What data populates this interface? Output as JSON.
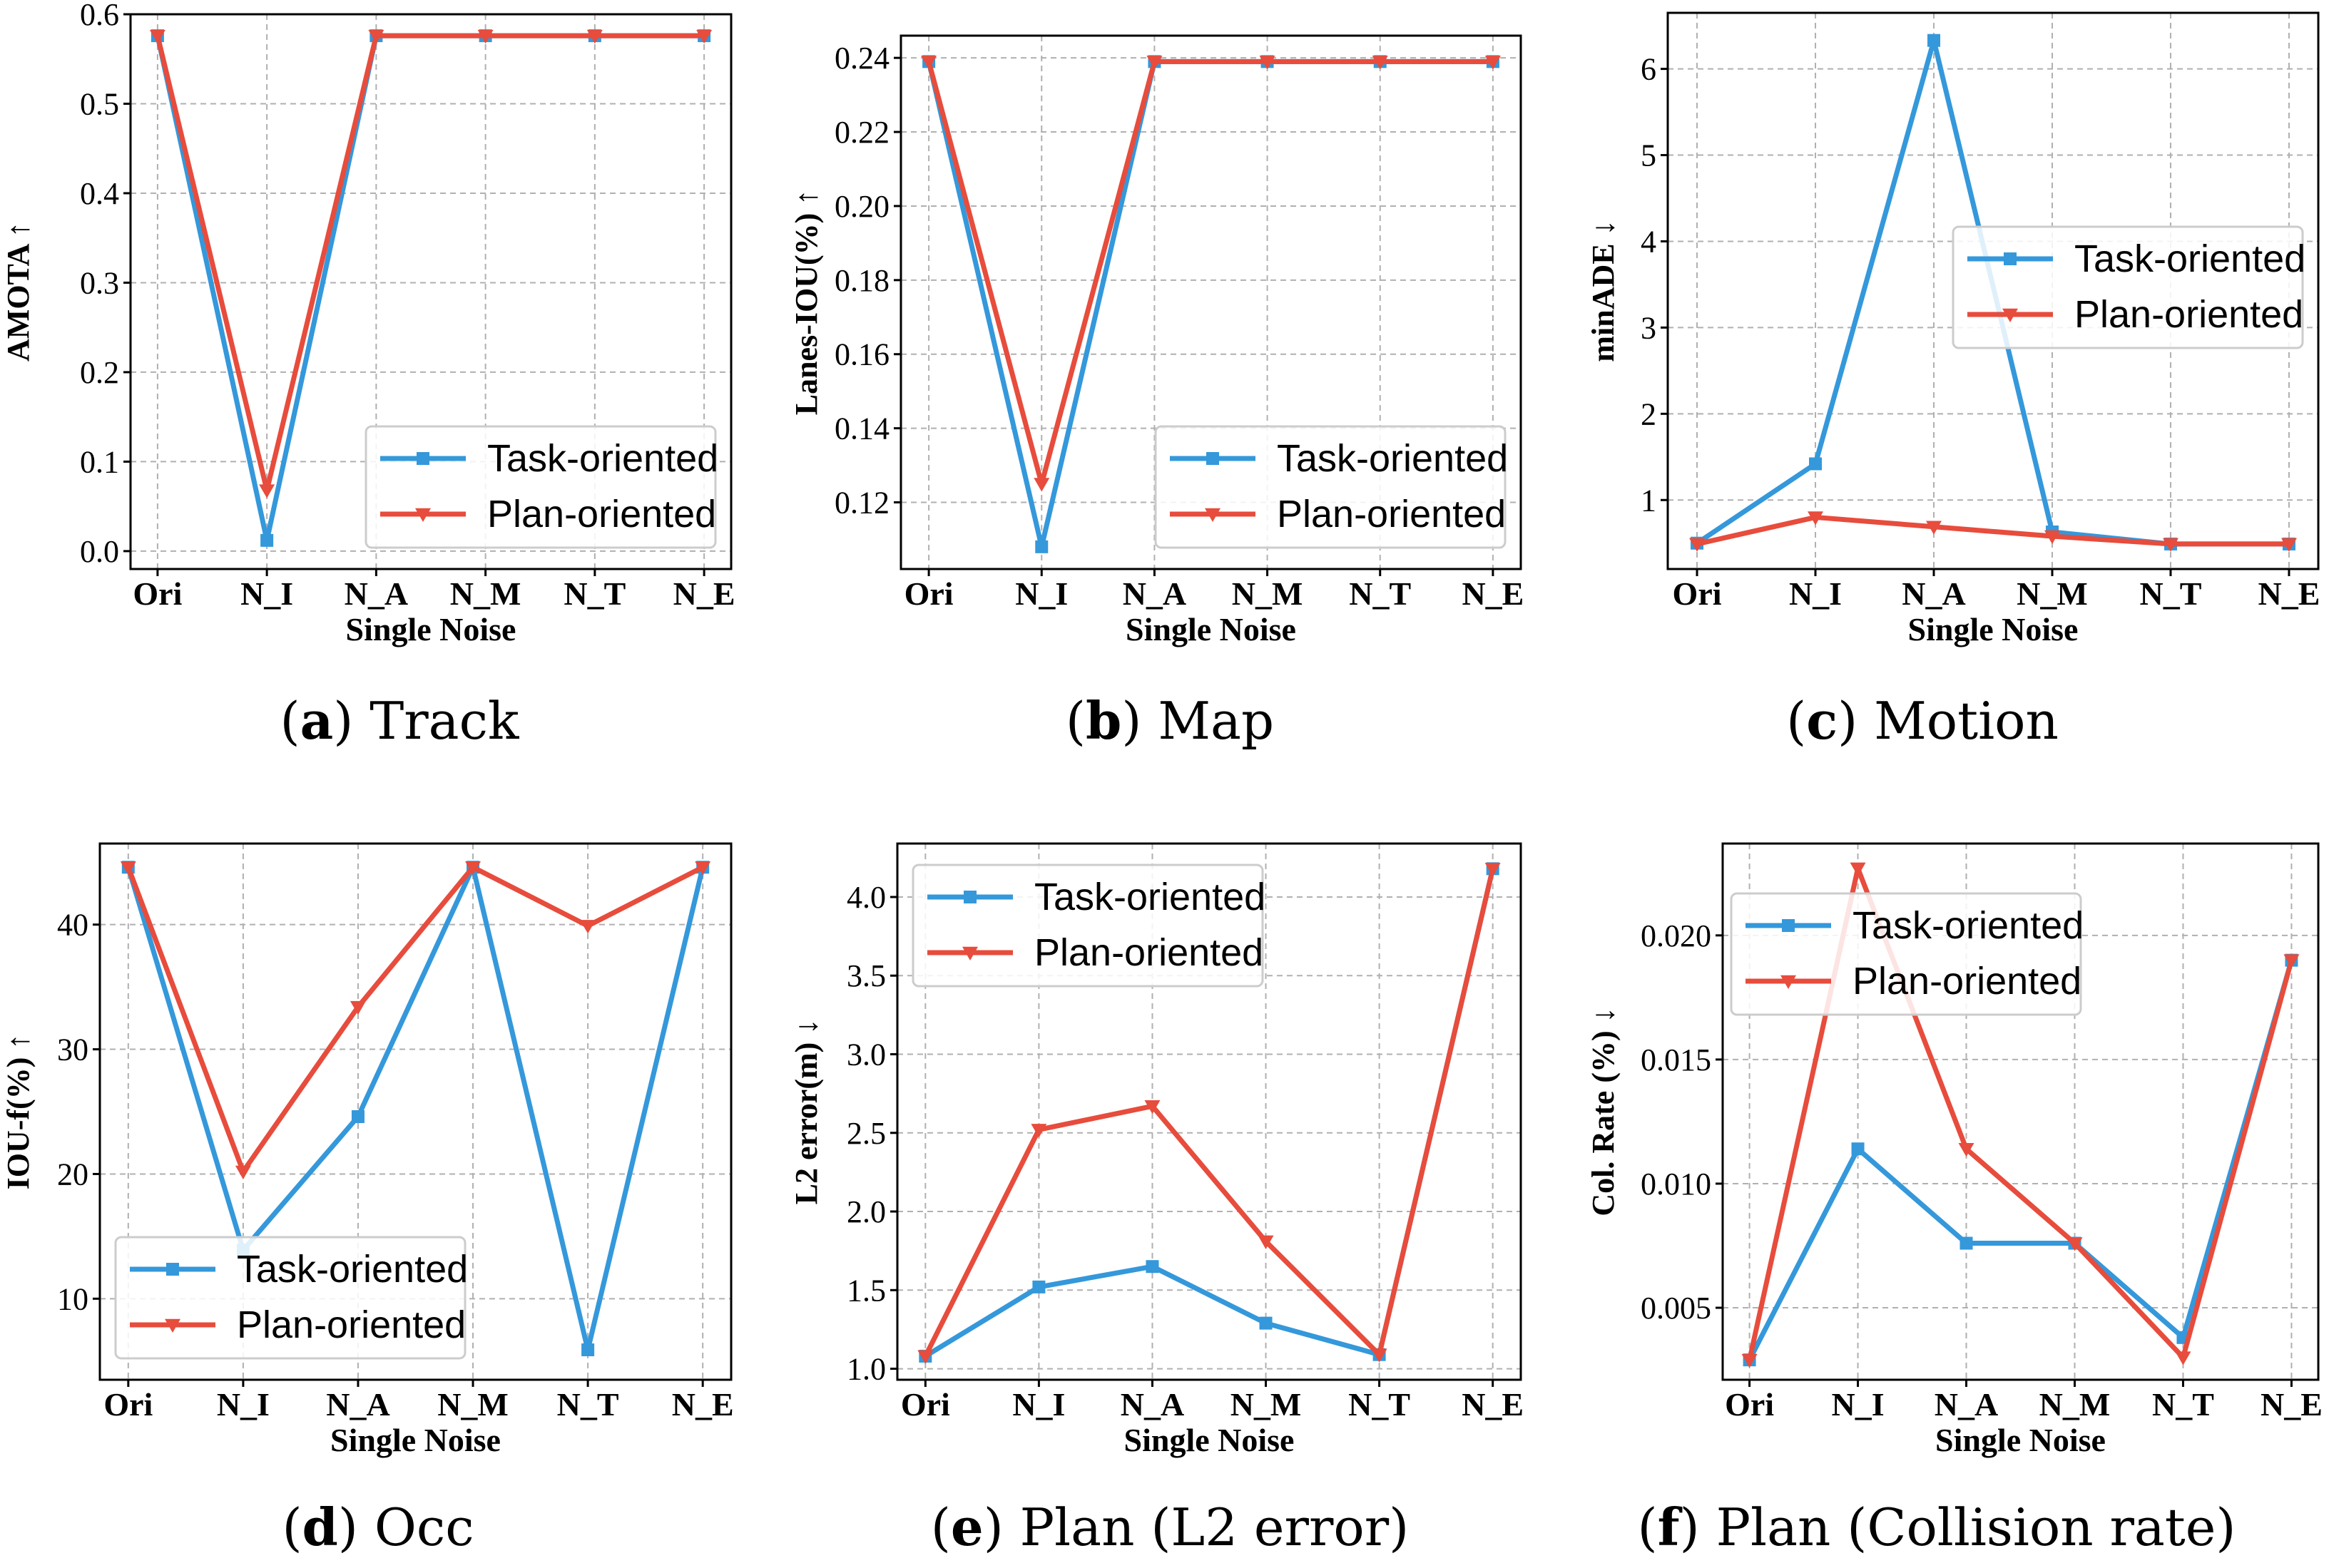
{
  "colors": {
    "task": "#3498db",
    "plan": "#e74c3c"
  },
  "series_names": [
    "Task-oriented",
    "Plan-oriented"
  ],
  "chart_data": [
    {
      "id": "a",
      "type": "line",
      "caption_letter": "a",
      "caption_text": "Track",
      "categories": [
        "Ori",
        "N_I",
        "N_A",
        "N_M",
        "N_T",
        "N_E"
      ],
      "xlabel": "Single Noise",
      "ylabel": "AMOTA ↑",
      "ylim": [
        -0.02,
        0.6
      ],
      "yticks": [
        0.0,
        0.1,
        0.2,
        0.3,
        0.4,
        0.5,
        0.6
      ],
      "ytick_labels": [
        "0.0",
        "0.1",
        "0.2",
        "0.3",
        "0.4",
        "0.5",
        "0.6"
      ],
      "legend_loc": "lower-right",
      "series": [
        {
          "name": "Task-oriented",
          "values": [
            0.576,
            0.012,
            0.576,
            0.576,
            0.576,
            0.576
          ]
        },
        {
          "name": "Plan-oriented",
          "values": [
            0.576,
            0.068,
            0.576,
            0.576,
            0.576,
            0.576
          ]
        }
      ]
    },
    {
      "id": "b",
      "type": "line",
      "caption_letter": "b",
      "caption_text": "Map",
      "categories": [
        "Ori",
        "N_I",
        "N_A",
        "N_M",
        "N_T",
        "N_E"
      ],
      "xlabel": "Single Noise",
      "ylabel": "Lanes-IOU(%) ↑",
      "ylim": [
        0.102,
        0.246
      ],
      "yticks": [
        0.12,
        0.14,
        0.16,
        0.18,
        0.2,
        0.22,
        0.24
      ],
      "ytick_labels": [
        "0.12",
        "0.14",
        "0.16",
        "0.18",
        "0.20",
        "0.22",
        "0.24"
      ],
      "legend_loc": "lower-right",
      "series": [
        {
          "name": "Task-oriented",
          "values": [
            0.239,
            0.108,
            0.239,
            0.239,
            0.239,
            0.239
          ]
        },
        {
          "name": "Plan-oriented",
          "values": [
            0.239,
            0.125,
            0.239,
            0.239,
            0.239,
            0.239
          ]
        }
      ]
    },
    {
      "id": "c",
      "type": "line",
      "caption_letter": "c",
      "caption_text": "Motion",
      "categories": [
        "Ori",
        "N_I",
        "N_A",
        "N_M",
        "N_T",
        "N_E"
      ],
      "xlabel": "Single Noise",
      "ylabel": "minADE ↓",
      "ylim": [
        0.2,
        6.65
      ],
      "yticks": [
        1,
        2,
        3,
        4,
        5,
        6
      ],
      "ytick_labels": [
        "1",
        "2",
        "3",
        "4",
        "5",
        "6"
      ],
      "legend_loc": "upper-right",
      "series": [
        {
          "name": "Task-oriented",
          "values": [
            0.5,
            1.42,
            6.33,
            0.63,
            0.49,
            0.49
          ]
        },
        {
          "name": "Plan-oriented",
          "values": [
            0.49,
            0.8,
            0.69,
            0.58,
            0.49,
            0.49
          ]
        }
      ]
    },
    {
      "id": "d",
      "type": "line",
      "caption_letter": "d",
      "caption_text": "Occ",
      "categories": [
        "Ori",
        "N_I",
        "N_A",
        "N_M",
        "N_T",
        "N_E"
      ],
      "xlabel": "Single Noise",
      "ylabel": "IOU-f(%) ↑",
      "ylim": [
        3.5,
        46.5
      ],
      "yticks": [
        10,
        20,
        30,
        40
      ],
      "ytick_labels": [
        "10",
        "20",
        "30",
        "40"
      ],
      "legend_loc": "lower-left",
      "series": [
        {
          "name": "Task-oriented",
          "values": [
            44.6,
            13.9,
            24.6,
            44.6,
            5.9,
            44.6
          ]
        },
        {
          "name": "Plan-oriented",
          "values": [
            44.6,
            20.2,
            33.4,
            44.6,
            39.9,
            44.6
          ]
        }
      ]
    },
    {
      "id": "e",
      "type": "line",
      "caption_letter": "e",
      "caption_text": "Plan (L2 error)",
      "categories": [
        "Ori",
        "N_I",
        "N_A",
        "N_M",
        "N_T",
        "N_E"
      ],
      "xlabel": "Single Noise",
      "ylabel": "L2 error(m) ↓",
      "ylim": [
        0.93,
        4.34
      ],
      "yticks": [
        1.0,
        1.5,
        2.0,
        2.5,
        3.0,
        3.5,
        4.0
      ],
      "ytick_labels": [
        "1.0",
        "1.5",
        "2.0",
        "2.5",
        "3.0",
        "3.5",
        "4.0"
      ],
      "legend_loc": "upper-left",
      "series": [
        {
          "name": "Task-oriented",
          "values": [
            1.08,
            1.52,
            1.65,
            1.29,
            1.09,
            4.18
          ]
        },
        {
          "name": "Plan-oriented",
          "values": [
            1.08,
            2.52,
            2.67,
            1.81,
            1.09,
            4.18
          ]
        }
      ]
    },
    {
      "id": "f",
      "type": "line",
      "caption_letter": "f",
      "caption_text": "Plan (Collision rate)",
      "categories": [
        "Ori",
        "N_I",
        "N_A",
        "N_M",
        "N_T",
        "N_E"
      ],
      "xlabel": "Single Noise",
      "ylabel": "Col. Rate (%) ↓",
      "ylim": [
        0.0021,
        0.0237
      ],
      "yticks": [
        0.005,
        0.01,
        0.015,
        0.02
      ],
      "ytick_labels": [
        "0.005",
        "0.010",
        "0.015",
        "0.020"
      ],
      "legend_loc": "upper-left",
      "series": [
        {
          "name": "Task-oriented",
          "values": [
            0.0029,
            0.0114,
            0.0076,
            0.0076,
            0.0038,
            0.019
          ]
        },
        {
          "name": "Plan-oriented",
          "values": [
            0.0029,
            0.0227,
            0.0114,
            0.0076,
            0.003,
            0.019
          ]
        }
      ]
    }
  ]
}
